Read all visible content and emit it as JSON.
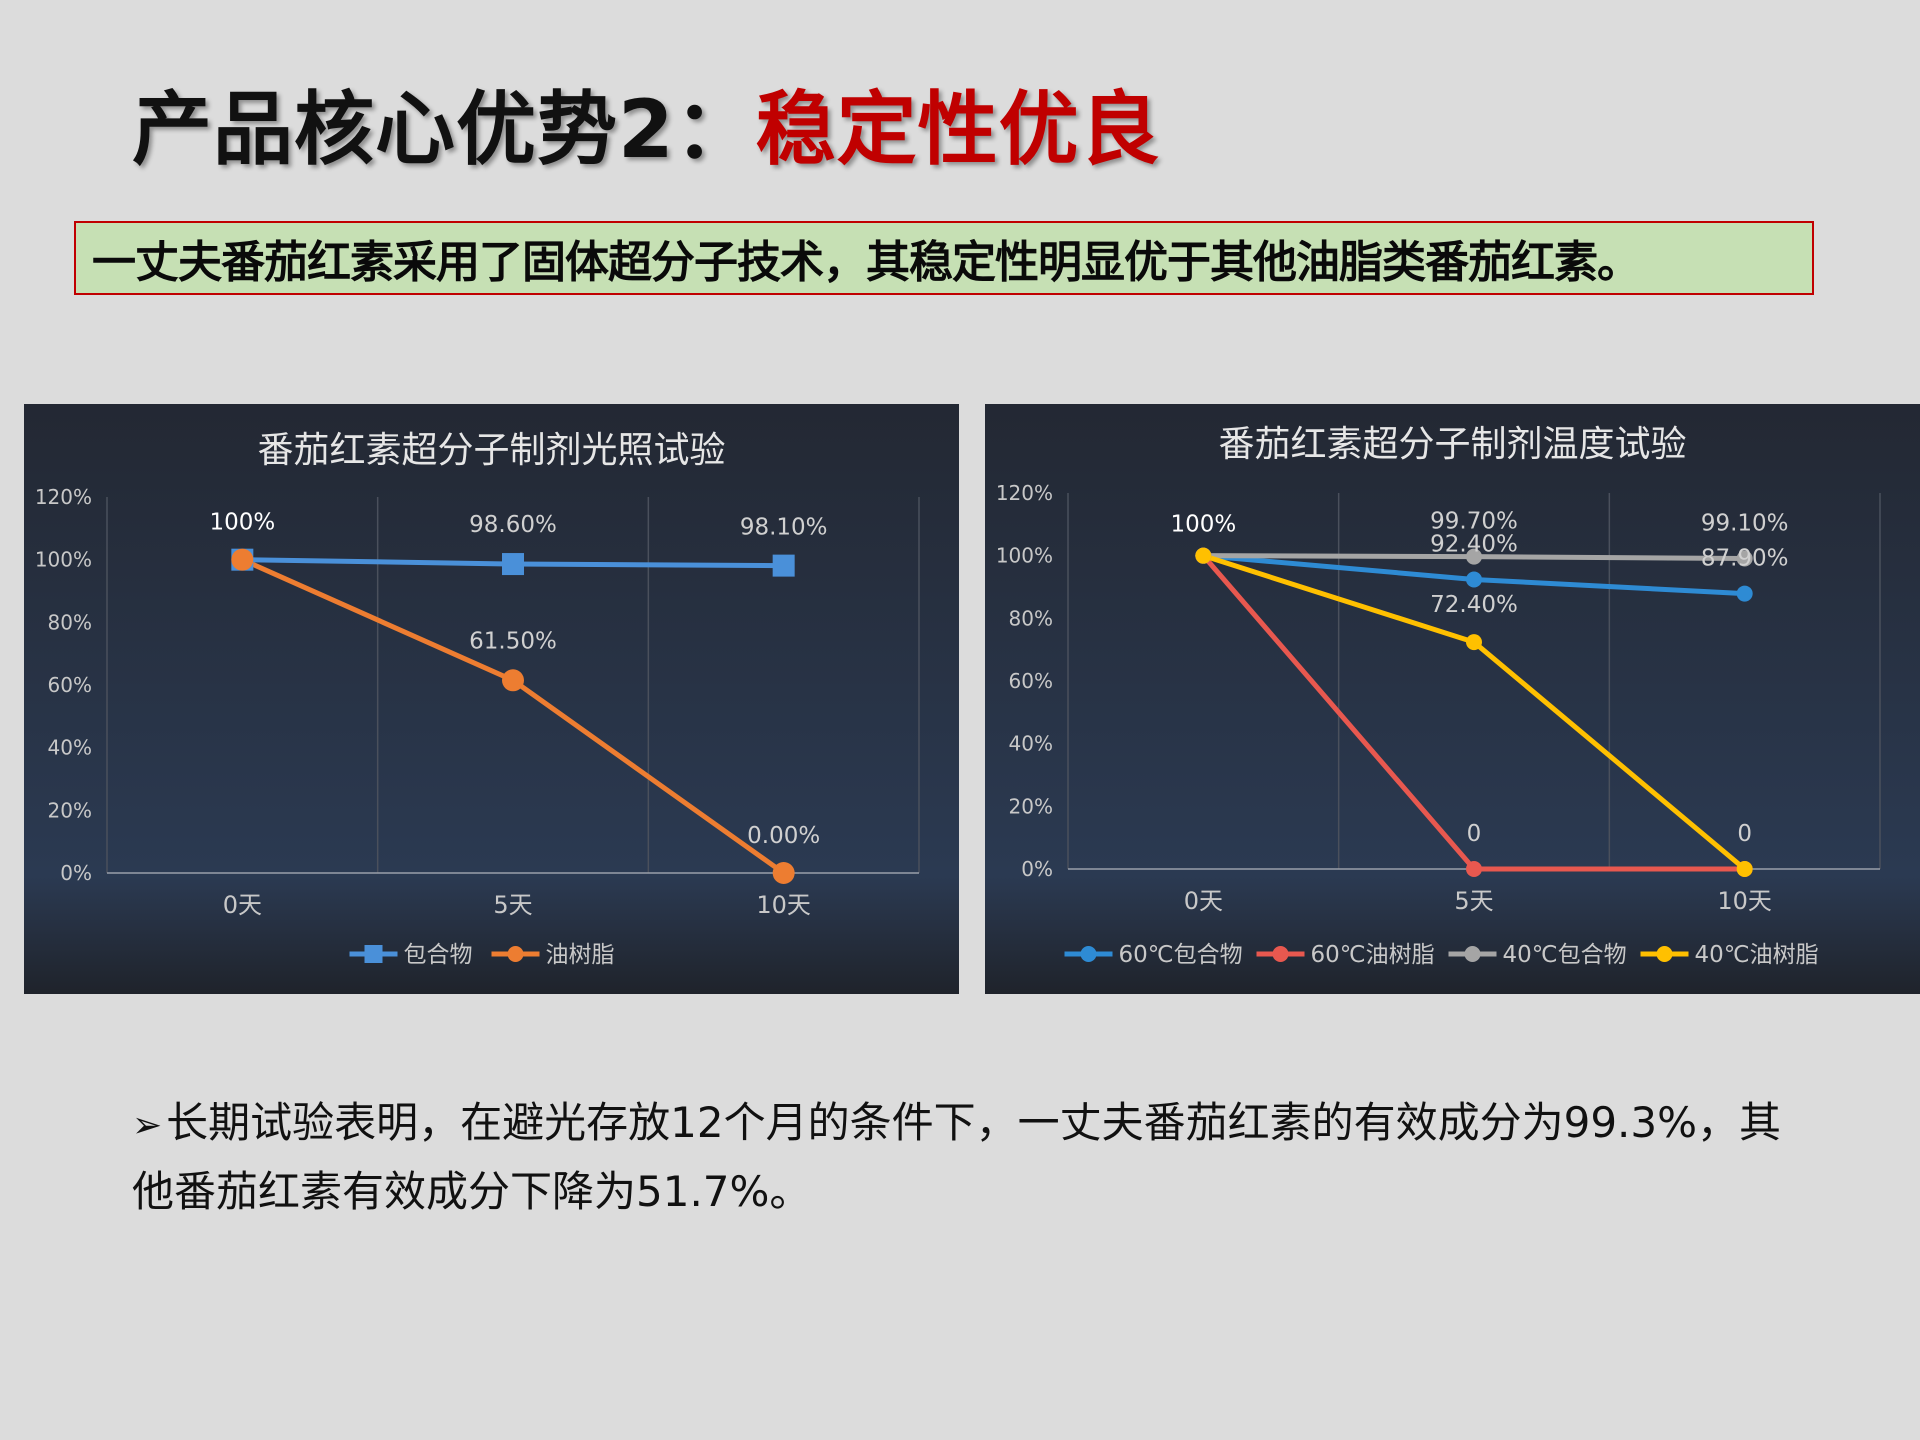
{
  "slide": {
    "title_prefix": "产品核心优势2：",
    "title_highlight": "稳定性优良",
    "highlight_text": "一丈夫番茄红素采用了固体超分子技术，其稳定性明显优于其他油脂类番茄红素。",
    "bullet_marker": "➢",
    "bullet_text": "长期试验表明，在避光存放12个月的条件下，一丈夫番茄红素的有效成分为99.3%，其他番茄红素有效成分下降为51.7%。"
  },
  "chart_data": [
    {
      "type": "line",
      "title": "番茄红素超分子制剂光照试验",
      "categories": [
        "0天",
        "5天",
        "10天"
      ],
      "y_ticks": [
        "0%",
        "20%",
        "40%",
        "60%",
        "80%",
        "100%",
        "120%"
      ],
      "ylim": [
        0,
        120
      ],
      "grid": "vertical",
      "legend_position": "bottom",
      "background": "#262c38",
      "series": [
        {
          "name": "包合物",
          "values": [
            100,
            98.6,
            98.1
          ],
          "labels": [
            "100%",
            "98.60%",
            "98.10%"
          ],
          "color": "#4a90d9",
          "marker": "square"
        },
        {
          "name": "油树脂",
          "values": [
            100,
            61.5,
            0
          ],
          "labels": [
            "",
            "61.50%",
            "0.00%"
          ],
          "color": "#ed7d31",
          "marker": "circle"
        }
      ]
    },
    {
      "type": "line",
      "title": "番茄红素超分子制剂温度试验",
      "categories": [
        "0天",
        "5天",
        "10天"
      ],
      "y_ticks": [
        "0%",
        "20%",
        "40%",
        "60%",
        "80%",
        "100%",
        "120%"
      ],
      "ylim": [
        0,
        120
      ],
      "grid": "vertical",
      "legend_position": "bottom",
      "background": "#262c38",
      "first_point_label": "100%",
      "series": [
        {
          "name": "60℃包合物",
          "values": [
            100,
            92.4,
            87.9
          ],
          "labels": [
            "",
            "92.40%",
            "87.90%"
          ],
          "color": "#2e8bd4",
          "marker": "circle"
        },
        {
          "name": "60℃油树脂",
          "values": [
            100,
            0,
            0
          ],
          "labels": [
            "",
            "0",
            "0"
          ],
          "color": "#e8584f",
          "marker": "circle"
        },
        {
          "name": "40℃包合物",
          "values": [
            100,
            99.7,
            99.1
          ],
          "labels": [
            "",
            "99.70%",
            "99.10%"
          ],
          "color": "#a5a5a5",
          "marker": "circle"
        },
        {
          "name": "40℃油树脂",
          "values": [
            100,
            72.4,
            0
          ],
          "labels": [
            "",
            "72.40%",
            ""
          ],
          "color": "#ffc000",
          "marker": "circle"
        }
      ]
    }
  ]
}
